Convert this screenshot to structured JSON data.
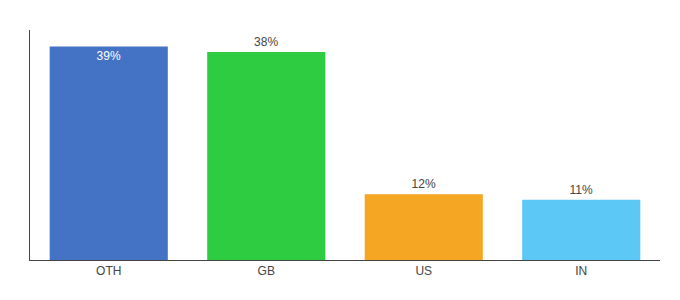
{
  "chart_data": {
    "type": "bar",
    "categories": [
      "OTH",
      "GB",
      "US",
      "IN"
    ],
    "values": [
      39,
      38,
      12,
      11
    ],
    "value_labels": [
      "39%",
      "38%",
      "12%",
      "11%"
    ],
    "colors": [
      "#4472c4",
      "#2ecc40",
      "#f5a623",
      "#5bc8f5"
    ],
    "ylim": [
      0,
      42
    ],
    "tick_labels": "x",
    "data_labels": true,
    "grid": false
  }
}
